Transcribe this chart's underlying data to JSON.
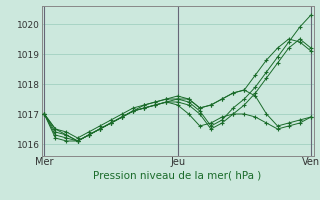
{
  "title": "Pression niveau de la mer( hPa )",
  "x_ticks_labels": [
    "Mer",
    "Jeu",
    "Ven"
  ],
  "x_ticks_pos": [
    0.0,
    0.5,
    1.0
  ],
  "ylim": [
    1015.6,
    1020.6
  ],
  "yticks": [
    1016,
    1017,
    1018,
    1019,
    1020
  ],
  "bg_color": "#cce8dd",
  "grid_color": "#99ccbb",
  "line_color": "#1a6b2a",
  "marker": "+",
  "series": [
    [
      1017.0,
      1016.2,
      1016.1,
      1016.1,
      1016.3,
      1016.5,
      1016.7,
      1016.9,
      1017.1,
      1017.2,
      1017.3,
      1017.4,
      1017.5,
      1017.4,
      1017.1,
      1016.6,
      1016.8,
      1017.2,
      1017.5,
      1017.9,
      1018.4,
      1018.9,
      1019.4,
      1019.9,
      1020.3
    ],
    [
      1017.0,
      1016.3,
      1016.2,
      1016.1,
      1016.3,
      1016.5,
      1016.7,
      1016.9,
      1017.1,
      1017.2,
      1017.3,
      1017.4,
      1017.4,
      1017.3,
      1017.0,
      1016.5,
      1016.7,
      1017.0,
      1017.3,
      1017.7,
      1018.2,
      1018.7,
      1019.2,
      1019.5,
      1019.2
    ],
    [
      1017.0,
      1016.4,
      1016.3,
      1016.1,
      1016.3,
      1016.5,
      1016.7,
      1016.9,
      1017.1,
      1017.3,
      1017.4,
      1017.5,
      1017.6,
      1017.5,
      1017.2,
      1017.3,
      1017.5,
      1017.7,
      1017.8,
      1018.3,
      1018.8,
      1019.2,
      1019.5,
      1019.4,
      1019.1
    ],
    [
      1017.0,
      1016.5,
      1016.4,
      1016.2,
      1016.4,
      1016.6,
      1016.8,
      1017.0,
      1017.2,
      1017.3,
      1017.4,
      1017.5,
      1017.5,
      1017.5,
      1017.2,
      1017.3,
      1017.5,
      1017.7,
      1017.8,
      1017.6,
      1017.0,
      1016.6,
      1016.7,
      1016.8,
      1016.9
    ],
    [
      1017.0,
      1016.5,
      1016.3,
      1016.1,
      1016.3,
      1016.5,
      1016.7,
      1016.9,
      1017.1,
      1017.2,
      1017.3,
      1017.4,
      1017.3,
      1017.0,
      1016.6,
      1016.7,
      1016.9,
      1017.0,
      1017.0,
      1016.9,
      1016.7,
      1016.5,
      1016.6,
      1016.7,
      1016.9
    ]
  ]
}
